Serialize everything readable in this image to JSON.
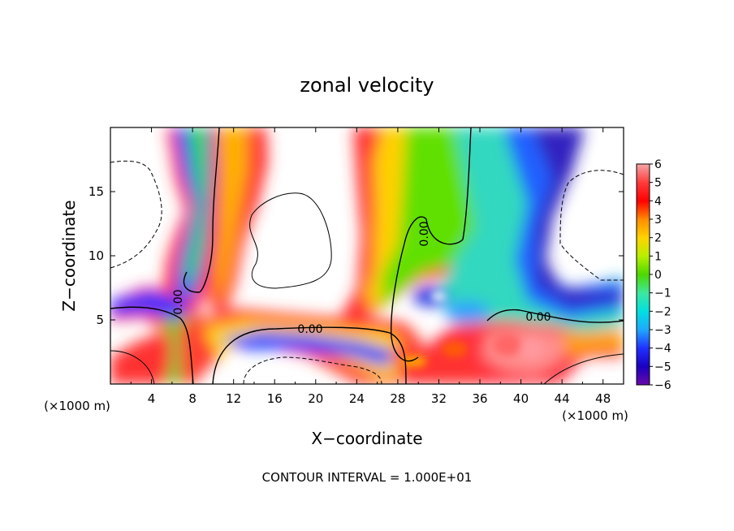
{
  "chart_data": {
    "type": "heatmap",
    "title": "zonal velocity",
    "xlabel": "X−coordinate",
    "ylabel": "Z−coordinate",
    "x_unit_left": "(×1000 m)",
    "x_unit_right": "(×1000 m)",
    "xlim": [
      0,
      50
    ],
    "ylim": [
      0,
      20
    ],
    "x_ticks": [
      4,
      8,
      12,
      16,
      20,
      24,
      28,
      32,
      36,
      40,
      44,
      48
    ],
    "x_tick_labels": [
      "4",
      "8",
      "12",
      "16",
      "20",
      "24",
      "28",
      "32",
      "36",
      "40",
      "44",
      "48"
    ],
    "y_ticks": [
      5,
      10,
      15
    ],
    "y_tick_labels": [
      "5",
      "10",
      "15"
    ],
    "colorbar": {
      "levels": [
        6,
        5,
        4,
        3,
        2,
        1,
        0,
        -1,
        -2,
        -3,
        -4,
        -5,
        -6
      ],
      "labels": [
        "6",
        "5",
        "4",
        "3",
        "2",
        "1",
        "0",
        "−1",
        "−2",
        "−3",
        "−4",
        "−5",
        "−6"
      ],
      "colors": [
        "#f4a6a6",
        "#ff3b3b",
        "#ff0000",
        "#ff8c00",
        "#ffd400",
        "#b8f000",
        "#4cd800",
        "#3de8a0",
        "#00e0e0",
        "#20a8ff",
        "#2030ff",
        "#1a00c0",
        "#6a0aa8"
      ]
    },
    "contour_labels": [
      "0.00",
      "0.00",
      "0.00",
      "0.00"
    ],
    "footer": "CONTOUR INTERVAL = 1.000E+01"
  }
}
